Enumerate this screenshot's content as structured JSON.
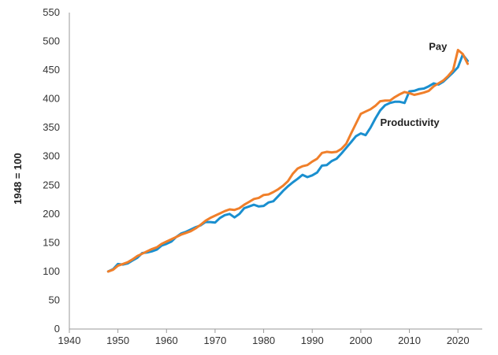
{
  "chart_data": {
    "type": "line",
    "title": "",
    "xlabel": "",
    "ylabel": "1948 = 100",
    "xlim": [
      1940,
      2025
    ],
    "ylim": [
      0,
      550
    ],
    "xticks": [
      1940,
      1950,
      1960,
      1970,
      1980,
      1990,
      2000,
      2010,
      2020
    ],
    "yticks": [
      0,
      50,
      100,
      150,
      200,
      250,
      300,
      350,
      400,
      450,
      500,
      550
    ],
    "grid": {
      "x": false,
      "y": false,
      "axis_lines": true
    },
    "legend": "none (series labeled directly on the chart)",
    "series": [
      {
        "name": "Productivity",
        "color": "#1a8fcf",
        "points": [
          [
            1948,
            100
          ],
          [
            1949,
            104
          ],
          [
            1950,
            113
          ],
          [
            1951,
            112
          ],
          [
            1952,
            114
          ],
          [
            1953,
            119
          ],
          [
            1954,
            124
          ],
          [
            1955,
            132
          ],
          [
            1956,
            133
          ],
          [
            1957,
            135
          ],
          [
            1958,
            138
          ],
          [
            1959,
            145
          ],
          [
            1960,
            148
          ],
          [
            1961,
            152
          ],
          [
            1962,
            160
          ],
          [
            1963,
            166
          ],
          [
            1964,
            169
          ],
          [
            1965,
            173
          ],
          [
            1966,
            177
          ],
          [
            1967,
            180
          ],
          [
            1968,
            186
          ],
          [
            1969,
            186
          ],
          [
            1970,
            185
          ],
          [
            1971,
            193
          ],
          [
            1972,
            198
          ],
          [
            1973,
            200
          ],
          [
            1974,
            194
          ],
          [
            1975,
            200
          ],
          [
            1976,
            210
          ],
          [
            1977,
            213
          ],
          [
            1978,
            216
          ],
          [
            1979,
            213
          ],
          [
            1980,
            214
          ],
          [
            1981,
            220
          ],
          [
            1982,
            222
          ],
          [
            1983,
            231
          ],
          [
            1984,
            240
          ],
          [
            1985,
            248
          ],
          [
            1986,
            255
          ],
          [
            1987,
            261
          ],
          [
            1988,
            268
          ],
          [
            1989,
            264
          ],
          [
            1990,
            267
          ],
          [
            1991,
            272
          ],
          [
            1992,
            284
          ],
          [
            1993,
            285
          ],
          [
            1994,
            292
          ],
          [
            1995,
            296
          ],
          [
            1996,
            305
          ],
          [
            1997,
            315
          ],
          [
            1998,
            325
          ],
          [
            1999,
            335
          ],
          [
            2000,
            340
          ],
          [
            2001,
            337
          ],
          [
            2002,
            350
          ],
          [
            2003,
            366
          ],
          [
            2004,
            380
          ],
          [
            2005,
            389
          ],
          [
            2006,
            393
          ],
          [
            2007,
            395
          ],
          [
            2008,
            395
          ],
          [
            2009,
            393
          ],
          [
            2010,
            413
          ],
          [
            2011,
            414
          ],
          [
            2012,
            417
          ],
          [
            2013,
            418
          ],
          [
            2014,
            422
          ],
          [
            2015,
            427
          ],
          [
            2016,
            425
          ],
          [
            2017,
            430
          ],
          [
            2018,
            438
          ],
          [
            2019,
            446
          ],
          [
            2020,
            455
          ],
          [
            2021,
            477
          ],
          [
            2022,
            466
          ]
        ]
      },
      {
        "name": "Pay",
        "color": "#f07f2a",
        "points": [
          [
            1948,
            100
          ],
          [
            1949,
            103
          ],
          [
            1950,
            110
          ],
          [
            1951,
            113
          ],
          [
            1952,
            116
          ],
          [
            1953,
            121
          ],
          [
            1954,
            127
          ],
          [
            1955,
            131
          ],
          [
            1956,
            135
          ],
          [
            1957,
            139
          ],
          [
            1958,
            142
          ],
          [
            1959,
            148
          ],
          [
            1960,
            152
          ],
          [
            1961,
            156
          ],
          [
            1962,
            160
          ],
          [
            1963,
            164
          ],
          [
            1964,
            167
          ],
          [
            1965,
            170
          ],
          [
            1966,
            175
          ],
          [
            1967,
            181
          ],
          [
            1968,
            188
          ],
          [
            1969,
            193
          ],
          [
            1970,
            197
          ],
          [
            1971,
            201
          ],
          [
            1972,
            205
          ],
          [
            1973,
            208
          ],
          [
            1974,
            207
          ],
          [
            1975,
            210
          ],
          [
            1976,
            216
          ],
          [
            1977,
            221
          ],
          [
            1978,
            226
          ],
          [
            1979,
            228
          ],
          [
            1980,
            233
          ],
          [
            1981,
            234
          ],
          [
            1982,
            238
          ],
          [
            1983,
            243
          ],
          [
            1984,
            249
          ],
          [
            1985,
            257
          ],
          [
            1986,
            270
          ],
          [
            1987,
            279
          ],
          [
            1988,
            283
          ],
          [
            1989,
            285
          ],
          [
            1990,
            291
          ],
          [
            1991,
            296
          ],
          [
            1992,
            306
          ],
          [
            1993,
            308
          ],
          [
            1994,
            307
          ],
          [
            1995,
            308
          ],
          [
            1996,
            313
          ],
          [
            1997,
            322
          ],
          [
            1998,
            340
          ],
          [
            1999,
            357
          ],
          [
            2000,
            374
          ],
          [
            2001,
            378
          ],
          [
            2002,
            382
          ],
          [
            2003,
            388
          ],
          [
            2004,
            396
          ],
          [
            2005,
            397
          ],
          [
            2006,
            397
          ],
          [
            2007,
            403
          ],
          [
            2008,
            408
          ],
          [
            2009,
            412
          ],
          [
            2010,
            410
          ],
          [
            2011,
            407
          ],
          [
            2012,
            409
          ],
          [
            2013,
            411
          ],
          [
            2014,
            414
          ],
          [
            2015,
            422
          ],
          [
            2016,
            427
          ],
          [
            2017,
            432
          ],
          [
            2018,
            440
          ],
          [
            2019,
            450
          ],
          [
            2020,
            485
          ],
          [
            2021,
            478
          ],
          [
            2022,
            461
          ]
        ]
      }
    ],
    "annotations": [
      {
        "text": "Pay",
        "x": 2014,
        "y": 485
      },
      {
        "text": "Productivity",
        "x": 2004,
        "y": 353
      }
    ]
  }
}
